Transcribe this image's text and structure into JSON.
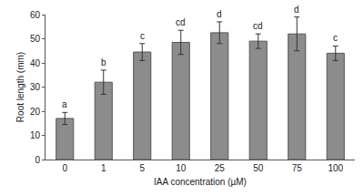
{
  "chart_data": {
    "type": "bar",
    "x_label": "IAA concentration (µM)",
    "y_label": "Root length (mm)",
    "categories": [
      "0",
      "1",
      "5",
      "10",
      "25",
      "50",
      "75",
      "100"
    ],
    "values": [
      17,
      32,
      44.5,
      48.5,
      52.5,
      49,
      52,
      44
    ],
    "errors": [
      2.5,
      5,
      3.5,
      5,
      4.5,
      3,
      7,
      3
    ],
    "annotations": [
      "a",
      "b",
      "c",
      "cd",
      "d",
      "cd",
      "d",
      "c"
    ],
    "color": "#8c8c8c",
    "ylim": [
      0,
      60
    ],
    "yticks": [
      0,
      10,
      20,
      30,
      40,
      50,
      60
    ],
    "grid": false
  }
}
